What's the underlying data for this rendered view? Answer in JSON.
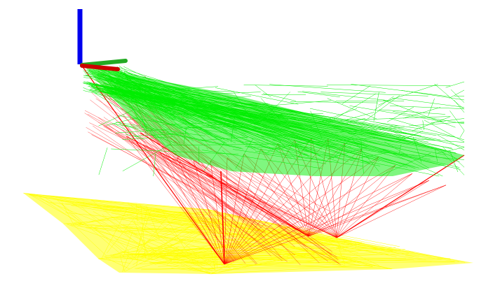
{
  "scene": {
    "background": "#ffffff",
    "axes": {
      "x_color": "#cc0000",
      "y_color": "#22aa22",
      "z_color": "#0000ee"
    },
    "layers": [
      {
        "name": "ground-plane-mesh",
        "color": "#ffff00"
      },
      {
        "name": "ray-lines",
        "color": "#ff0000"
      },
      {
        "name": "surface-mesh",
        "color": "#00ee00"
      }
    ]
  }
}
